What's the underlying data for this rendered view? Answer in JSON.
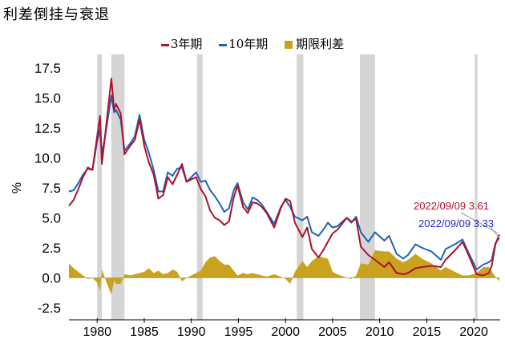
{
  "title": "利差倒挂与衰退",
  "colors": {
    "y3": "#b0112b",
    "y10": "#1f63b5",
    "spread": "#c9a21e",
    "recession": "#d5d5d5",
    "ann1": "#b0112b",
    "ann2": "#2424d0"
  },
  "legend": [
    {
      "name": "3年期",
      "kind": "line",
      "color": "#b0112b"
    },
    {
      "name": "10年期",
      "kind": "line",
      "color": "#1f63b5"
    },
    {
      "name": "期限利差",
      "kind": "area",
      "color": "#c9a21e"
    }
  ],
  "chart_data": {
    "type": "line",
    "title": "利差倒挂与衰退",
    "ylabel": "%",
    "xlim": [
      1977,
      2022.8
    ],
    "ylim": [
      -3.5,
      18.5
    ],
    "y_ticks": [
      "17.5",
      "15.0",
      "12.5",
      "10.0",
      "7.5",
      "5.0",
      "2.5",
      "0.0",
      "-2.5"
    ],
    "y_tick_values": [
      17.5,
      15,
      12.5,
      10,
      7.5,
      5,
      2.5,
      0,
      -2.5
    ],
    "x_ticks": [
      "1980",
      "1985",
      "1990",
      "1995",
      "2000",
      "2005",
      "2010",
      "2015",
      "2020"
    ],
    "x_tick_values": [
      1980,
      1985,
      1990,
      1995,
      2000,
      2005,
      2010,
      2015,
      2020
    ],
    "recessions": [
      [
        1980.0,
        1980.5
      ],
      [
        1981.5,
        1982.9
      ],
      [
        1990.6,
        1991.2
      ],
      [
        2001.2,
        2001.9
      ],
      [
        2007.9,
        2009.5
      ],
      [
        2020.1,
        2020.4
      ]
    ],
    "series": [
      {
        "name": "3年期",
        "values": [
          [
            1977.0,
            6.0
          ],
          [
            1977.5,
            6.5
          ],
          [
            1978.0,
            7.4
          ],
          [
            1978.5,
            8.4
          ],
          [
            1979.0,
            9.2
          ],
          [
            1979.5,
            9.0
          ],
          [
            1980.0,
            11.8
          ],
          [
            1980.3,
            13.5
          ],
          [
            1980.5,
            9.5
          ],
          [
            1981.0,
            13.0
          ],
          [
            1981.5,
            16.6
          ],
          [
            1981.8,
            14.0
          ],
          [
            1982.0,
            14.5
          ],
          [
            1982.5,
            13.7
          ],
          [
            1982.9,
            10.3
          ],
          [
            1983.5,
            11.0
          ],
          [
            1984.0,
            11.5
          ],
          [
            1984.5,
            13.2
          ],
          [
            1985.0,
            11.0
          ],
          [
            1985.5,
            9.6
          ],
          [
            1986.0,
            8.6
          ],
          [
            1986.5,
            6.6
          ],
          [
            1987.0,
            6.9
          ],
          [
            1987.5,
            8.4
          ],
          [
            1988.0,
            7.8
          ],
          [
            1988.5,
            8.6
          ],
          [
            1989.0,
            9.5
          ],
          [
            1989.5,
            8.0
          ],
          [
            1990.0,
            8.2
          ],
          [
            1990.5,
            8.4
          ],
          [
            1991.0,
            7.4
          ],
          [
            1991.5,
            6.8
          ],
          [
            1992.0,
            5.6
          ],
          [
            1992.5,
            5.0
          ],
          [
            1993.0,
            4.8
          ],
          [
            1993.5,
            4.4
          ],
          [
            1994.0,
            4.7
          ],
          [
            1994.5,
            6.7
          ],
          [
            1994.9,
            7.7
          ],
          [
            1995.5,
            5.9
          ],
          [
            1996.0,
            5.4
          ],
          [
            1996.5,
            6.3
          ],
          [
            1997.0,
            6.2
          ],
          [
            1997.5,
            5.9
          ],
          [
            1998.0,
            5.4
          ],
          [
            1998.8,
            4.2
          ],
          [
            1999.5,
            5.8
          ],
          [
            2000.0,
            6.6
          ],
          [
            2000.5,
            6.4
          ],
          [
            2001.0,
            4.6
          ],
          [
            2001.8,
            3.4
          ],
          [
            2002.3,
            4.2
          ],
          [
            2002.8,
            2.4
          ],
          [
            2003.5,
            1.7
          ],
          [
            2004.0,
            2.3
          ],
          [
            2004.5,
            3.0
          ],
          [
            2005.0,
            3.7
          ],
          [
            2005.5,
            4.0
          ],
          [
            2006.5,
            5.0
          ],
          [
            2007.0,
            4.7
          ],
          [
            2007.5,
            4.9
          ],
          [
            2008.0,
            2.6
          ],
          [
            2008.8,
            1.9
          ],
          [
            2009.5,
            1.5
          ],
          [
            2010.5,
            0.9
          ],
          [
            2011.0,
            1.3
          ],
          [
            2011.8,
            0.4
          ],
          [
            2012.5,
            0.3
          ],
          [
            2013.0,
            0.4
          ],
          [
            2013.8,
            0.8
          ],
          [
            2014.5,
            0.9
          ],
          [
            2015.5,
            1.0
          ],
          [
            2016.5,
            0.9
          ],
          [
            2017.0,
            1.5
          ],
          [
            2018.0,
            2.3
          ],
          [
            2018.8,
            3.0
          ],
          [
            2019.5,
            1.8
          ],
          [
            2020.3,
            0.3
          ],
          [
            2021.0,
            0.2
          ],
          [
            2021.6,
            0.4
          ],
          [
            2021.9,
            1.0
          ],
          [
            2022.3,
            2.8
          ],
          [
            2022.7,
            3.61
          ]
        ]
      },
      {
        "name": "10年期",
        "values": [
          [
            1977.0,
            7.2
          ],
          [
            1977.5,
            7.3
          ],
          [
            1978.0,
            7.9
          ],
          [
            1978.5,
            8.6
          ],
          [
            1979.0,
            9.1
          ],
          [
            1979.5,
            9.0
          ],
          [
            1980.0,
            11.4
          ],
          [
            1980.3,
            12.4
          ],
          [
            1980.5,
            10.2
          ],
          [
            1981.0,
            12.6
          ],
          [
            1981.5,
            15.2
          ],
          [
            1981.8,
            13.8
          ],
          [
            1982.0,
            14.0
          ],
          [
            1982.5,
            13.2
          ],
          [
            1982.9,
            10.6
          ],
          [
            1983.5,
            11.2
          ],
          [
            1984.0,
            11.8
          ],
          [
            1984.5,
            13.6
          ],
          [
            1985.0,
            11.5
          ],
          [
            1985.5,
            10.4
          ],
          [
            1986.0,
            9.0
          ],
          [
            1986.5,
            7.2
          ],
          [
            1987.0,
            7.2
          ],
          [
            1987.5,
            8.8
          ],
          [
            1988.0,
            8.5
          ],
          [
            1988.5,
            9.1
          ],
          [
            1989.0,
            9.2
          ],
          [
            1989.5,
            8.0
          ],
          [
            1990.0,
            8.4
          ],
          [
            1990.5,
            8.8
          ],
          [
            1991.0,
            8.0
          ],
          [
            1991.5,
            8.1
          ],
          [
            1992.0,
            7.3
          ],
          [
            1992.5,
            6.8
          ],
          [
            1993.0,
            6.2
          ],
          [
            1993.5,
            5.5
          ],
          [
            1994.0,
            5.8
          ],
          [
            1994.5,
            7.3
          ],
          [
            1994.9,
            7.9
          ],
          [
            1995.5,
            6.3
          ],
          [
            1996.0,
            5.7
          ],
          [
            1996.5,
            6.7
          ],
          [
            1997.0,
            6.5
          ],
          [
            1997.5,
            6.1
          ],
          [
            1998.0,
            5.5
          ],
          [
            1998.8,
            4.5
          ],
          [
            1999.5,
            5.9
          ],
          [
            2000.0,
            6.5
          ],
          [
            2000.5,
            5.9
          ],
          [
            2001.0,
            5.1
          ],
          [
            2001.8,
            4.8
          ],
          [
            2002.3,
            5.1
          ],
          [
            2002.8,
            3.8
          ],
          [
            2003.5,
            3.5
          ],
          [
            2004.0,
            4.0
          ],
          [
            2004.5,
            4.6
          ],
          [
            2005.0,
            4.2
          ],
          [
            2005.5,
            4.3
          ],
          [
            2006.5,
            5.0
          ],
          [
            2007.0,
            4.6
          ],
          [
            2007.5,
            5.1
          ],
          [
            2008.0,
            3.8
          ],
          [
            2008.8,
            3.0
          ],
          [
            2009.5,
            3.8
          ],
          [
            2010.5,
            3.1
          ],
          [
            2011.0,
            3.5
          ],
          [
            2011.8,
            2.0
          ],
          [
            2012.5,
            1.6
          ],
          [
            2013.0,
            1.9
          ],
          [
            2013.8,
            2.8
          ],
          [
            2014.5,
            2.5
          ],
          [
            2015.5,
            2.2
          ],
          [
            2016.5,
            1.5
          ],
          [
            2017.0,
            2.4
          ],
          [
            2018.0,
            2.8
          ],
          [
            2018.8,
            3.2
          ],
          [
            2019.5,
            2.0
          ],
          [
            2020.3,
            0.7
          ],
          [
            2021.0,
            1.1
          ],
          [
            2021.6,
            1.3
          ],
          [
            2021.9,
            1.5
          ],
          [
            2022.3,
            2.9
          ],
          [
            2022.7,
            3.33
          ]
        ]
      }
    ],
    "annotations": [
      {
        "text": "2022/09/09 3.61",
        "color": "ann1",
        "x": 2022.7,
        "y": 3.61
      },
      {
        "text": "2022/09/09 3.33",
        "color": "ann2",
        "x": 2022.7,
        "y": 3.33
      }
    ]
  }
}
